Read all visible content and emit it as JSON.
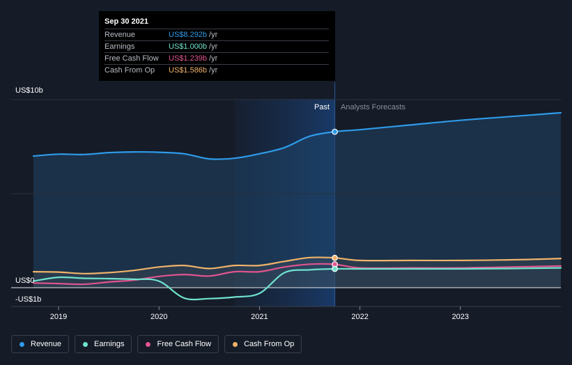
{
  "tooltip": {
    "date": "Sep 30 2021",
    "rows": [
      {
        "label": "Revenue",
        "value": "US$8.292b",
        "unit": "/yr",
        "color": "#2f9be9"
      },
      {
        "label": "Earnings",
        "value": "US$1.000b",
        "unit": "/yr",
        "color": "#6fe3cf"
      },
      {
        "label": "Free Cash Flow",
        "value": "US$1.239b",
        "unit": "/yr",
        "color": "#e0558f"
      },
      {
        "label": "Cash From Op",
        "value": "US$1.586b",
        "unit": "/yr",
        "color": "#f0b36a"
      }
    ]
  },
  "legend": [
    {
      "label": "Revenue",
      "color": "#2f9be9"
    },
    {
      "label": "Earnings",
      "color": "#6fe3cf"
    },
    {
      "label": "Free Cash Flow",
      "color": "#e0558f"
    },
    {
      "label": "Cash From Op",
      "color": "#f0b36a"
    }
  ],
  "chart_data": {
    "type": "line",
    "title": "",
    "xlabel": "",
    "ylabel": "",
    "ylim": [
      -1,
      10
    ],
    "y_tick_labels": [
      {
        "value": 10,
        "label": "US$10b"
      },
      {
        "value": 0,
        "label": "US$0"
      },
      {
        "value": -1,
        "label": "-US$1b"
      }
    ],
    "x_ticks": [
      2019,
      2020,
      2021,
      2022,
      2023
    ],
    "xlim": [
      2018.75,
      2024.0
    ],
    "past_label": "Past",
    "forecast_label": "Analysts Forecasts",
    "past_end": 2021.75,
    "highlight_start": 2020.75,
    "grid": true,
    "legend_position": "bottom-left",
    "series": [
      {
        "name": "Revenue",
        "color": "#2f9be9",
        "x": [
          2018.75,
          2019.0,
          2019.25,
          2019.5,
          2019.75,
          2020.0,
          2020.25,
          2020.5,
          2020.75,
          2021.0,
          2021.25,
          2021.5,
          2021.75,
          2022.0,
          2022.5,
          2023.0,
          2023.5,
          2024.0
        ],
        "y": [
          7.0,
          7.1,
          7.08,
          7.18,
          7.22,
          7.2,
          7.12,
          6.85,
          6.88,
          7.12,
          7.45,
          8.05,
          8.292,
          8.4,
          8.65,
          8.9,
          9.1,
          9.3
        ]
      },
      {
        "name": "Earnings",
        "color": "#6fe3cf",
        "x": [
          2018.75,
          2019.0,
          2019.25,
          2019.5,
          2019.75,
          2020.0,
          2020.25,
          2020.5,
          2020.75,
          2021.0,
          2021.25,
          2021.5,
          2021.75,
          2022.0,
          2022.5,
          2023.0,
          2023.5,
          2024.0
        ],
        "y": [
          0.35,
          0.55,
          0.5,
          0.48,
          0.45,
          0.35,
          -0.55,
          -0.58,
          -0.5,
          -0.3,
          0.8,
          0.95,
          1.0,
          1.0,
          1.0,
          1.0,
          1.02,
          1.05
        ]
      },
      {
        "name": "Free Cash Flow",
        "color": "#e0558f",
        "x": [
          2018.75,
          2019.0,
          2019.25,
          2019.5,
          2019.75,
          2020.0,
          2020.25,
          2020.5,
          2020.75,
          2021.0,
          2021.25,
          2021.5,
          2021.75,
          2022.0,
          2022.5,
          2023.0,
          2023.5,
          2024.0
        ],
        "y": [
          0.25,
          0.22,
          0.18,
          0.3,
          0.4,
          0.6,
          0.7,
          0.62,
          0.85,
          0.85,
          1.1,
          1.25,
          1.239,
          1.05,
          1.05,
          1.05,
          1.1,
          1.15
        ]
      },
      {
        "name": "Cash From Op",
        "color": "#f0b36a",
        "x": [
          2018.75,
          2019.0,
          2019.25,
          2019.5,
          2019.75,
          2020.0,
          2020.25,
          2020.5,
          2020.75,
          2021.0,
          2021.25,
          2021.5,
          2021.75,
          2022.0,
          2022.5,
          2023.0,
          2023.5,
          2024.0
        ],
        "y": [
          0.85,
          0.83,
          0.75,
          0.8,
          0.92,
          1.1,
          1.18,
          1.02,
          1.18,
          1.18,
          1.4,
          1.6,
          1.586,
          1.45,
          1.45,
          1.45,
          1.48,
          1.55
        ]
      }
    ]
  }
}
